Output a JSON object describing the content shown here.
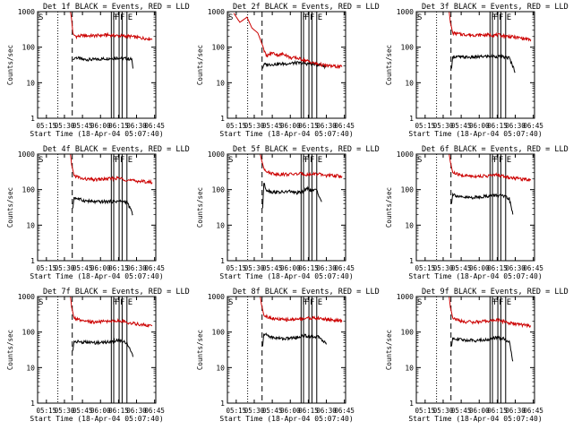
{
  "ytitle": "Counts/sec",
  "yticks": [
    "1",
    "10",
    "100",
    "1000"
  ],
  "xticks": [
    "05:15",
    "05:30",
    "05:45",
    "06:00",
    "06:15",
    "06:30",
    "06:45"
  ],
  "xtitle": "Start Time (18-Apr-04 05:07:40)",
  "line_colors": {
    "events": "#000000",
    "lld": "#cc0000"
  },
  "marker_labels": [
    "S",
    "F",
    "F",
    "F",
    "E"
  ],
  "chart_data": [
    {
      "type": "line",
      "title": "Det 1f BLACK = Events, RED = LLD",
      "ylim": [
        1,
        1000
      ],
      "yscale": "log",
      "series": [
        {
          "role": "events",
          "x": [
            "05:37",
            "05:38",
            "05:39",
            "05:45",
            "05:55",
            "06:05",
            "06:15",
            "06:20",
            "06:26",
            "06:27"
          ],
          "values": [
            45,
            45,
            52,
            45,
            45,
            48,
            50,
            48,
            46,
            25
          ]
        },
        {
          "role": "lld",
          "x": [
            "05:35",
            "05:36",
            "05:37",
            "05:38",
            "05:40",
            "05:45",
            "05:55",
            "06:05",
            "06:15",
            "06:25",
            "06:35",
            "06:43"
          ],
          "values": [
            1000,
            600,
            250,
            220,
            200,
            210,
            210,
            220,
            210,
            200,
            180,
            170
          ]
        }
      ]
    },
    {
      "type": "line",
      "title": "Det 2f BLACK = Events, RED = LLD",
      "ylim": [
        1,
        1000
      ],
      "yscale": "log",
      "series": [
        {
          "role": "events",
          "x": [
            "05:37",
            "05:38",
            "05:45",
            "05:55",
            "06:05",
            "06:15",
            "06:25",
            "06:30"
          ],
          "values": [
            25,
            32,
            33,
            34,
            36,
            34,
            32,
            28
          ]
        },
        {
          "role": "lld",
          "x": [
            "05:13",
            "05:18",
            "05:24",
            "05:28",
            "05:33",
            "05:37",
            "05:40",
            "05:45",
            "05:50",
            "05:55",
            "06:00",
            "06:05",
            "06:10",
            "06:15",
            "06:20",
            "06:30",
            "06:43"
          ],
          "values": [
            900,
            500,
            700,
            350,
            250,
            110,
            55,
            70,
            60,
            65,
            50,
            50,
            45,
            40,
            35,
            30,
            28
          ]
        }
      ]
    },
    {
      "type": "line",
      "title": "Det 3f BLACK = Events, RED = LLD",
      "ylim": [
        1,
        1000
      ],
      "yscale": "log",
      "series": [
        {
          "role": "events",
          "x": [
            "05:37",
            "05:38",
            "05:45",
            "05:55",
            "06:05",
            "06:15",
            "06:25",
            "06:30"
          ],
          "values": [
            25,
            55,
            52,
            52,
            55,
            55,
            50,
            20
          ]
        },
        {
          "role": "lld",
          "x": [
            "05:35",
            "05:36",
            "05:38",
            "05:45",
            "05:55",
            "06:05",
            "06:15",
            "06:25",
            "06:35",
            "06:43"
          ],
          "values": [
            1000,
            500,
            250,
            230,
            220,
            220,
            220,
            200,
            180,
            160
          ]
        }
      ]
    },
    {
      "type": "line",
      "title": "Det 4f BLACK = Events, RED = LLD",
      "ylim": [
        1,
        1000
      ],
      "yscale": "log",
      "series": [
        {
          "role": "events",
          "x": [
            "05:37",
            "05:38",
            "05:45",
            "05:55",
            "06:05",
            "06:15",
            "06:22",
            "06:27"
          ],
          "values": [
            30,
            60,
            50,
            45,
            46,
            47,
            45,
            20
          ]
        },
        {
          "role": "lld",
          "x": [
            "05:35",
            "05:36",
            "05:38",
            "05:45",
            "05:55",
            "06:05",
            "06:15",
            "06:25",
            "06:35",
            "06:43"
          ],
          "values": [
            1000,
            500,
            250,
            200,
            190,
            200,
            210,
            180,
            170,
            160
          ]
        }
      ]
    },
    {
      "type": "line",
      "title": "Det 5f BLACK = Events, RED = LLD",
      "ylim": [
        1,
        1000
      ],
      "yscale": "log",
      "series": [
        {
          "role": "events",
          "x": [
            "05:37",
            "05:38",
            "05:40",
            "05:45",
            "05:55",
            "06:00",
            "06:05",
            "06:10",
            "06:15",
            "06:18",
            "06:22",
            "06:26"
          ],
          "values": [
            30,
            150,
            100,
            85,
            85,
            90,
            80,
            85,
            110,
            90,
            100,
            45
          ]
        },
        {
          "role": "lld",
          "x": [
            "05:35",
            "05:36",
            "05:38",
            "05:42",
            "05:50",
            "06:00",
            "06:10",
            "06:15",
            "06:20",
            "06:30",
            "06:43"
          ],
          "values": [
            1000,
            700,
            400,
            300,
            270,
            270,
            280,
            260,
            280,
            250,
            240
          ]
        }
      ]
    },
    {
      "type": "line",
      "title": "Det 6f BLACK = Events, RED = LLD",
      "ylim": [
        1,
        1000
      ],
      "yscale": "log",
      "series": [
        {
          "role": "events",
          "x": [
            "05:37",
            "05:38",
            "05:45",
            "05:55",
            "06:05",
            "06:15",
            "06:20",
            "06:25",
            "06:28"
          ],
          "values": [
            40,
            75,
            60,
            60,
            65,
            70,
            65,
            55,
            20
          ]
        },
        {
          "role": "lld",
          "x": [
            "05:35",
            "05:36",
            "05:38",
            "05:45",
            "05:55",
            "06:05",
            "06:15",
            "06:25",
            "06:35",
            "06:43"
          ],
          "values": [
            1000,
            600,
            300,
            250,
            240,
            240,
            260,
            220,
            200,
            190
          ]
        }
      ]
    },
    {
      "type": "line",
      "title": "Det 7f BLACK = Events, RED = LLD",
      "ylim": [
        1,
        1000
      ],
      "yscale": "log",
      "series": [
        {
          "role": "events",
          "x": [
            "05:37",
            "05:38",
            "05:45",
            "05:55",
            "06:05",
            "06:10",
            "06:15",
            "06:22",
            "06:27"
          ],
          "values": [
            30,
            55,
            52,
            50,
            52,
            55,
            60,
            50,
            20
          ]
        },
        {
          "role": "lld",
          "x": [
            "05:35",
            "05:36",
            "05:38",
            "05:45",
            "05:55",
            "06:05",
            "06:15",
            "06:25",
            "06:35",
            "06:43"
          ],
          "values": [
            1000,
            500,
            250,
            200,
            190,
            200,
            210,
            180,
            160,
            150
          ]
        }
      ]
    },
    {
      "type": "line",
      "title": "Det 8f BLACK = Events, RED = LLD",
      "ylim": [
        1,
        1000
      ],
      "yscale": "log",
      "series": [
        {
          "role": "events",
          "x": [
            "05:37",
            "05:38",
            "05:45",
            "05:55",
            "06:05",
            "06:12",
            "06:15",
            "06:20",
            "06:25",
            "06:30"
          ],
          "values": [
            40,
            90,
            70,
            65,
            70,
            80,
            75,
            75,
            70,
            45
          ]
        },
        {
          "role": "lld",
          "x": [
            "05:35",
            "05:36",
            "05:38",
            "05:45",
            "05:55",
            "06:05",
            "06:15",
            "06:25",
            "06:35",
            "06:43"
          ],
          "values": [
            1000,
            600,
            300,
            240,
            220,
            230,
            250,
            240,
            220,
            200
          ]
        }
      ]
    },
    {
      "type": "line",
      "title": "Det 9f BLACK = Events, RED = LLD",
      "ylim": [
        1,
        1000
      ],
      "yscale": "log",
      "series": [
        {
          "role": "events",
          "x": [
            "05:37",
            "05:38",
            "05:45",
            "05:55",
            "06:05",
            "06:15",
            "06:20",
            "06:25",
            "06:28"
          ],
          "values": [
            40,
            70,
            60,
            58,
            60,
            70,
            65,
            55,
            15
          ]
        },
        {
          "role": "lld",
          "x": [
            "05:35",
            "05:36",
            "05:38",
            "05:45",
            "05:55",
            "06:05",
            "06:15",
            "06:25",
            "06:35",
            "06:43"
          ],
          "values": [
            1000,
            500,
            250,
            200,
            190,
            200,
            220,
            180,
            160,
            150
          ]
        }
      ]
    }
  ]
}
